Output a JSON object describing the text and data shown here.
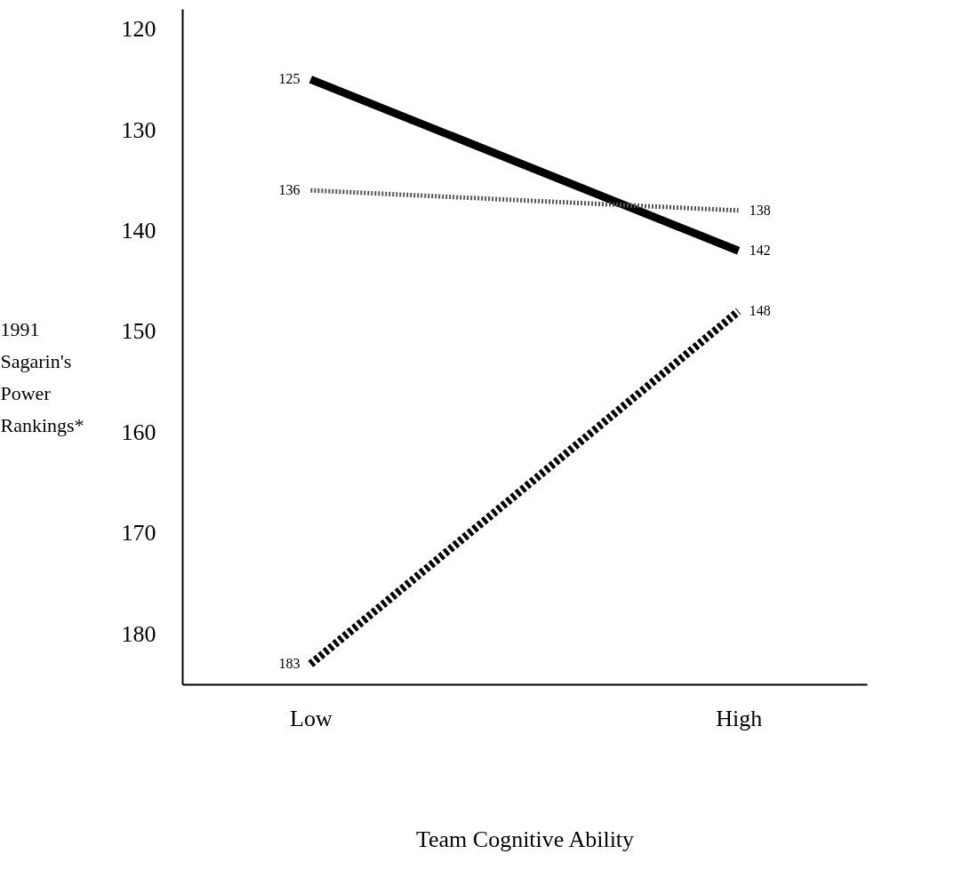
{
  "chart_data": {
    "type": "line",
    "xlabel": "Team Cognitive Ability",
    "ylabel": "1991 Sagarin's Power Rankings*",
    "categories": [
      "Low",
      "High"
    ],
    "series": [
      {
        "color": "#000000",
        "values": [
          125,
          142
        ],
        "line_style": "solid"
      },
      {
        "color": "#555555",
        "values": [
          136,
          138
        ],
        "line_style": "dotted"
      },
      {
        "color": "#000000",
        "values": [
          183,
          148
        ],
        "line_style": "dashed"
      }
    ],
    "ylim": [
      185,
      118
    ],
    "yticks": [
      120,
      130,
      140,
      150,
      160,
      170,
      180
    ],
    "data_labels": true,
    "grid": false,
    "legend": false,
    "marker": "none"
  }
}
